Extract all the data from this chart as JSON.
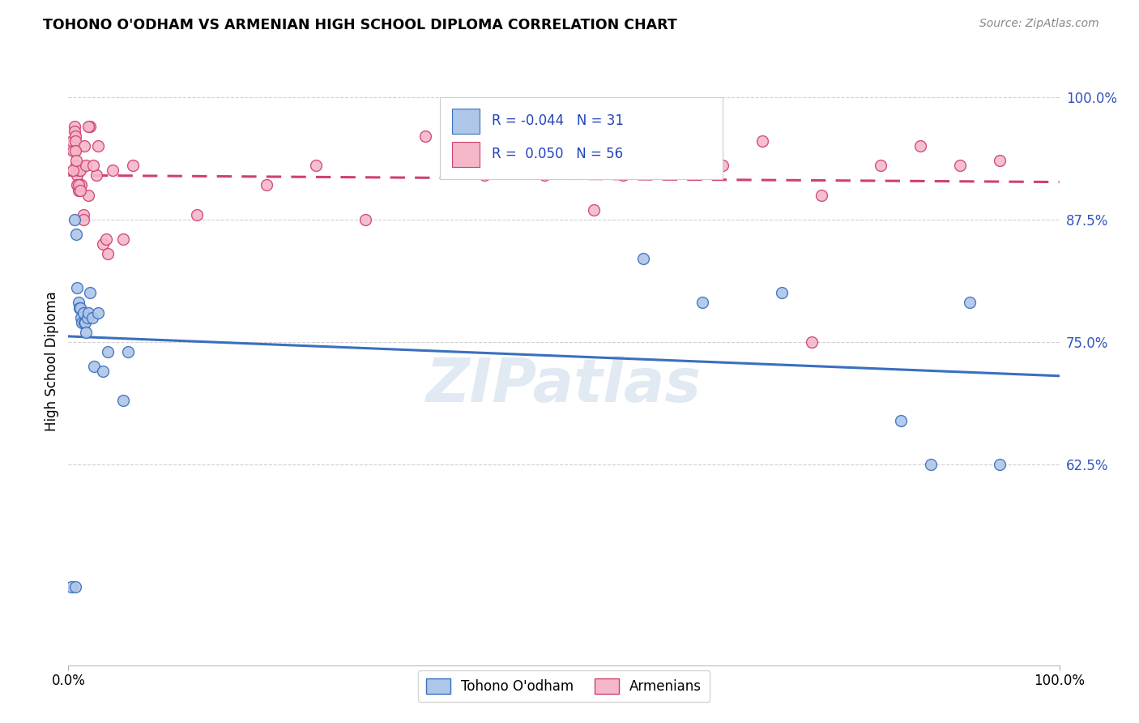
{
  "title": "TOHONO O'ODHAM VS ARMENIAN HIGH SCHOOL DIPLOMA CORRELATION CHART",
  "source": "Source: ZipAtlas.com",
  "ylabel": "High School Diploma",
  "legend_label_1": "Tohono O'odham",
  "legend_label_2": "Armenians",
  "r1": "-0.044",
  "n1": "31",
  "r2": "0.050",
  "n2": "56",
  "watermark": "ZIPatlas",
  "blue_color": "#aec6e8",
  "pink_color": "#f4b8c8",
  "blue_line_color": "#3a6fbf",
  "pink_line_color": "#d04070",
  "ytick_labels": [
    "62.5%",
    "75.0%",
    "87.5%",
    "100.0%"
  ],
  "ytick_values": [
    0.625,
    0.75,
    0.875,
    1.0
  ],
  "xlim": [
    0.0,
    1.0
  ],
  "ylim": [
    0.42,
    1.04
  ],
  "blue_x": [
    0.003,
    0.006,
    0.008,
    0.009,
    0.01,
    0.011,
    0.012,
    0.013,
    0.014,
    0.015,
    0.016,
    0.017,
    0.018,
    0.019,
    0.02,
    0.022,
    0.024,
    0.026,
    0.03,
    0.035,
    0.04,
    0.055,
    0.06,
    0.58,
    0.64,
    0.72,
    0.84,
    0.87,
    0.91,
    0.94,
    0.007
  ],
  "blue_y": [
    0.5,
    0.875,
    0.86,
    0.805,
    0.79,
    0.785,
    0.785,
    0.775,
    0.77,
    0.78,
    0.77,
    0.77,
    0.76,
    0.775,
    0.78,
    0.8,
    0.775,
    0.725,
    0.78,
    0.72,
    0.74,
    0.69,
    0.74,
    0.835,
    0.79,
    0.8,
    0.67,
    0.625,
    0.79,
    0.625,
    0.5
  ],
  "pink_x": [
    0.004,
    0.005,
    0.006,
    0.006,
    0.007,
    0.007,
    0.008,
    0.008,
    0.009,
    0.009,
    0.01,
    0.01,
    0.011,
    0.012,
    0.012,
    0.013,
    0.015,
    0.016,
    0.018,
    0.02,
    0.022,
    0.028,
    0.03,
    0.035,
    0.038,
    0.04,
    0.045,
    0.055,
    0.065,
    0.13,
    0.2,
    0.25,
    0.3,
    0.36,
    0.42,
    0.48,
    0.53,
    0.56,
    0.62,
    0.66,
    0.7,
    0.76,
    0.82,
    0.86,
    0.9,
    0.94,
    0.005,
    0.007,
    0.008,
    0.01,
    0.012,
    0.015,
    0.02,
    0.025,
    0.64,
    0.75
  ],
  "pink_y": [
    0.955,
    0.945,
    0.97,
    0.965,
    0.96,
    0.955,
    0.93,
    0.925,
    0.92,
    0.91,
    0.925,
    0.905,
    0.91,
    0.925,
    0.91,
    0.91,
    0.88,
    0.95,
    0.93,
    0.9,
    0.97,
    0.92,
    0.95,
    0.85,
    0.855,
    0.84,
    0.925,
    0.855,
    0.93,
    0.88,
    0.91,
    0.93,
    0.875,
    0.96,
    0.92,
    0.92,
    0.885,
    0.92,
    0.925,
    0.93,
    0.955,
    0.9,
    0.93,
    0.95,
    0.93,
    0.935,
    0.925,
    0.945,
    0.935,
    0.91,
    0.905,
    0.875,
    0.97,
    0.93,
    0.97,
    0.75
  ]
}
